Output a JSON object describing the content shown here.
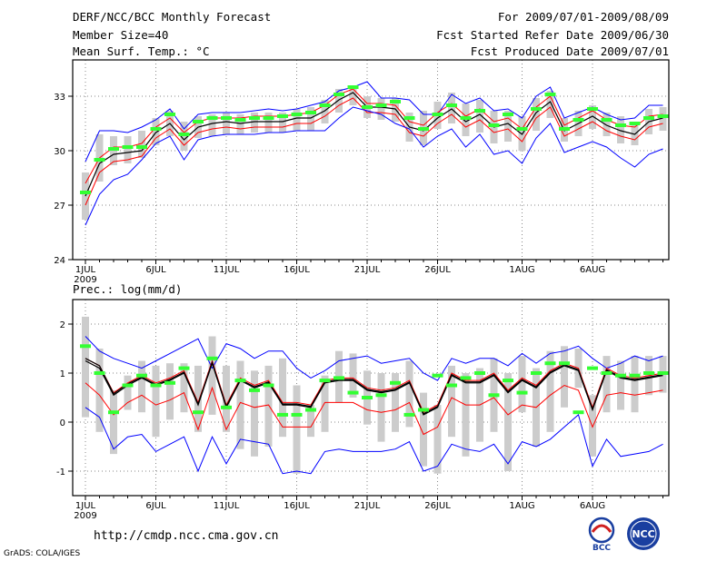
{
  "header": {
    "line1": "DERF/NCC/BCC Monthly Forecast",
    "line2": "Member Size=40",
    "line3": "Mean Surf. Temp.: °C",
    "right1": "For 2009/07/01-2009/08/09",
    "right2": "Fcst Started Refer Date 2009/06/30",
    "right3": "Fcst Produced Date 2009/07/01"
  },
  "footer": {
    "url": "http://cmdp.ncc.cma.gov.cn",
    "grads": "GrADS: COLA/IGES",
    "logo1": "BCC",
    "logo2": "NCC"
  },
  "colors": {
    "blue": "#0000ff",
    "red": "#ff0000",
    "black": "#000000",
    "green": "#33ff33",
    "gray": "#cccccc"
  },
  "chart_data": [
    {
      "type": "line",
      "title": "Mean Surf. Temp.: °C",
      "ylim": [
        24,
        35
      ],
      "yticks": [
        24,
        27,
        30,
        33
      ],
      "ytick_labels": [
        "24",
        "27",
        "30",
        "33"
      ],
      "xticks": [
        {
          "day": 1,
          "label": "1JUL",
          "sub": "2009"
        },
        {
          "day": 6,
          "label": "6JUL"
        },
        {
          "day": 11,
          "label": "11JUL"
        },
        {
          "day": 16,
          "label": "16JUL"
        },
        {
          "day": 21,
          "label": "21JUL"
        },
        {
          "day": 26,
          "label": "26JUL"
        },
        {
          "day": 32,
          "label": "1AUG"
        },
        {
          "day": 37,
          "label": "6AUG"
        }
      ],
      "days": 40,
      "series": [
        {
          "name": "max",
          "color": "blue",
          "values": [
            29.4,
            31.1,
            31.1,
            31.0,
            31.3,
            31.7,
            32.3,
            31.2,
            32.0,
            32.1,
            32.1,
            32.1,
            32.2,
            32.3,
            32.2,
            32.3,
            32.5,
            32.7,
            33.3,
            33.5,
            33.8,
            32.9,
            32.9,
            32.8,
            32.0,
            32.0,
            33.1,
            32.6,
            32.9,
            32.2,
            32.3,
            31.8,
            33.0,
            33.5,
            31.8,
            32.1,
            32.4,
            32.0,
            31.7,
            31.8,
            32.5,
            32.5
          ]
        },
        {
          "name": "mean",
          "color": "black",
          "values": [
            27.5,
            29.3,
            29.8,
            29.9,
            30.0,
            31.0,
            31.5,
            30.6,
            31.3,
            31.5,
            31.6,
            31.5,
            31.6,
            31.6,
            31.6,
            31.8,
            31.8,
            32.2,
            32.8,
            33.2,
            32.4,
            32.4,
            32.3,
            31.3,
            31.1,
            31.8,
            32.3,
            31.6,
            32.0,
            31.3,
            31.5,
            30.9,
            32.1,
            32.7,
            31.1,
            31.5,
            31.9,
            31.4,
            31.1,
            30.9,
            31.6,
            31.8
          ]
        },
        {
          "name": "upper",
          "color": "red",
          "values": [
            28.2,
            29.6,
            30.2,
            30.2,
            30.4,
            31.3,
            31.8,
            31.0,
            31.6,
            31.8,
            31.8,
            31.8,
            31.9,
            31.9,
            31.9,
            32.0,
            32.1,
            32.5,
            33.1,
            33.4,
            32.6,
            32.6,
            32.5,
            31.6,
            31.4,
            32.1,
            32.6,
            31.9,
            32.3,
            31.6,
            31.8,
            31.2,
            32.4,
            33.0,
            31.4,
            31.8,
            32.2,
            31.7,
            31.4,
            31.3,
            31.9,
            32.0
          ]
        },
        {
          "name": "lower",
          "color": "red",
          "values": [
            27.0,
            28.8,
            29.4,
            29.5,
            29.7,
            30.7,
            31.2,
            30.3,
            31.0,
            31.2,
            31.3,
            31.2,
            31.3,
            31.3,
            31.3,
            31.5,
            31.5,
            31.9,
            32.5,
            32.9,
            32.1,
            32.1,
            32.0,
            31.0,
            30.8,
            31.5,
            32.0,
            31.3,
            31.7,
            31.0,
            31.2,
            30.5,
            31.8,
            32.4,
            30.8,
            31.2,
            31.6,
            31.1,
            30.8,
            30.6,
            31.3,
            31.5
          ]
        },
        {
          "name": "min",
          "color": "blue",
          "values": [
            25.9,
            27.6,
            28.4,
            28.7,
            29.5,
            30.4,
            30.8,
            29.5,
            30.6,
            30.8,
            30.9,
            30.9,
            30.9,
            31.0,
            31.0,
            31.1,
            31.1,
            31.1,
            31.8,
            32.4,
            32.2,
            32.0,
            31.5,
            31.2,
            30.2,
            30.8,
            31.2,
            30.2,
            30.9,
            29.8,
            30.0,
            29.3,
            30.7,
            31.5,
            29.9,
            30.2,
            30.5,
            30.2,
            29.6,
            29.1,
            29.8,
            30.1
          ]
        }
      ],
      "markers": [
        27.7,
        29.5,
        30.1,
        30.2,
        30.2,
        31.2,
        32.0,
        30.9,
        31.6,
        31.8,
        31.8,
        31.7,
        31.8,
        31.8,
        31.9,
        32.0,
        32.1,
        32.5,
        33.1,
        33.5,
        32.4,
        32.5,
        32.7,
        31.8,
        31.2,
        32.0,
        32.5,
        31.8,
        32.2,
        31.4,
        32.0,
        31.2,
        32.3,
        33.1,
        31.2,
        31.7,
        32.3,
        31.7,
        31.4,
        31.5,
        31.8,
        31.9
      ],
      "bars": [
        [
          26.2,
          28.8
        ],
        [
          28.3,
          30.9
        ],
        [
          29.2,
          30.8
        ],
        [
          29.3,
          30.8
        ],
        [
          29.6,
          31.1
        ],
        [
          30.3,
          31.8
        ],
        [
          30.8,
          32.2
        ],
        [
          30.0,
          31.6
        ],
        [
          30.7,
          31.9
        ],
        [
          30.8,
          32.0
        ],
        [
          30.9,
          32.1
        ],
        [
          30.9,
          32.0
        ],
        [
          31.0,
          32.1
        ],
        [
          31.0,
          32.1
        ],
        [
          31.0,
          32.1
        ],
        [
          31.1,
          32.3
        ],
        [
          31.1,
          32.4
        ],
        [
          31.5,
          32.8
        ],
        [
          32.1,
          33.4
        ],
        [
          32.5,
          33.5
        ],
        [
          31.8,
          33.0
        ],
        [
          31.7,
          32.9
        ],
        [
          31.6,
          32.9
        ],
        [
          30.5,
          32.1
        ],
        [
          30.3,
          32.2
        ],
        [
          31.2,
          32.7
        ],
        [
          31.5,
          33.2
        ],
        [
          30.8,
          32.6
        ],
        [
          31.0,
          32.8
        ],
        [
          30.4,
          32.2
        ],
        [
          30.5,
          32.2
        ],
        [
          30.0,
          31.9
        ],
        [
          31.1,
          32.9
        ],
        [
          31.8,
          33.3
        ],
        [
          30.5,
          31.8
        ],
        [
          30.8,
          32.2
        ],
        [
          31.2,
          32.5
        ],
        [
          30.8,
          32.1
        ],
        [
          30.4,
          31.9
        ],
        [
          30.3,
          31.5
        ],
        [
          30.9,
          32.3
        ],
        [
          31.1,
          32.4
        ]
      ]
    },
    {
      "type": "line",
      "title": "Prec.: log(mm/d)",
      "ylim": [
        -1.5,
        2.5
      ],
      "yticks": [
        -1,
        0,
        1,
        2
      ],
      "ytick_labels": [
        "-1",
        "0",
        "1",
        "2"
      ],
      "xticks": [
        {
          "day": 1,
          "label": "1JUL",
          "sub": "2009"
        },
        {
          "day": 6,
          "label": "6JUL"
        },
        {
          "day": 11,
          "label": "11JUL"
        },
        {
          "day": 16,
          "label": "16JUL"
        },
        {
          "day": 21,
          "label": "21JUL"
        },
        {
          "day": 26,
          "label": "26JUL"
        },
        {
          "day": 32,
          "label": "1AUG"
        },
        {
          "day": 37,
          "label": "6AUG"
        }
      ],
      "days": 40,
      "series": [
        {
          "name": "max",
          "color": "blue",
          "values": [
            1.75,
            1.45,
            1.3,
            1.2,
            1.1,
            1.25,
            1.4,
            1.55,
            1.7,
            1.1,
            1.6,
            1.5,
            1.3,
            1.45,
            1.45,
            1.1,
            0.9,
            1.05,
            1.25,
            1.3,
            1.35,
            1.2,
            1.25,
            1.3,
            1.0,
            0.85,
            1.3,
            1.2,
            1.3,
            1.3,
            1.15,
            1.4,
            1.2,
            1.4,
            1.45,
            1.55,
            1.3,
            1.1,
            1.2,
            1.35,
            1.25,
            1.35
          ]
        },
        {
          "name": "mean",
          "color": "black",
          "values": [
            1.25,
            1.1,
            0.55,
            0.75,
            0.9,
            0.75,
            0.85,
            1.0,
            0.35,
            1.2,
            0.3,
            0.85,
            0.7,
            0.8,
            0.35,
            0.35,
            0.3,
            0.8,
            0.85,
            0.85,
            0.65,
            0.6,
            0.65,
            0.8,
            0.15,
            0.3,
            0.95,
            0.8,
            0.8,
            0.95,
            0.6,
            0.85,
            0.7,
            1.0,
            1.15,
            1.05,
            0.25,
            1.05,
            0.9,
            0.85,
            0.9,
            0.95
          ]
        },
        {
          "name": "upper",
          "color": "red",
          "values": [
            1.3,
            1.15,
            0.6,
            0.8,
            0.95,
            0.8,
            0.9,
            1.05,
            0.4,
            1.25,
            0.35,
            0.9,
            0.75,
            0.85,
            0.4,
            0.4,
            0.35,
            0.85,
            0.9,
            0.9,
            0.7,
            0.65,
            0.7,
            0.85,
            0.2,
            0.35,
            1.0,
            0.85,
            0.85,
            1.0,
            0.65,
            0.9,
            0.75,
            1.05,
            1.2,
            1.1,
            0.3,
            1.1,
            0.95,
            0.9,
            0.95,
            1.0
          ]
        },
        {
          "name": "lower",
          "color": "red",
          "values": [
            0.8,
            0.55,
            0.15,
            0.4,
            0.55,
            0.35,
            0.45,
            0.6,
            -0.15,
            0.7,
            -0.15,
            0.4,
            0.3,
            0.35,
            -0.1,
            -0.1,
            -0.1,
            0.4,
            0.4,
            0.4,
            0.25,
            0.2,
            0.25,
            0.4,
            -0.25,
            -0.1,
            0.5,
            0.35,
            0.35,
            0.5,
            0.15,
            0.35,
            0.3,
            0.55,
            0.75,
            0.65,
            -0.1,
            0.55,
            0.6,
            0.55,
            0.6,
            0.65
          ]
        },
        {
          "name": "min",
          "color": "blue",
          "values": [
            0.3,
            0.1,
            -0.55,
            -0.3,
            -0.25,
            -0.6,
            -0.45,
            -0.3,
            -1.0,
            -0.3,
            -0.85,
            -0.35,
            -0.4,
            -0.45,
            -1.05,
            -1.0,
            -1.05,
            -0.6,
            -0.55,
            -0.6,
            -0.6,
            -0.6,
            -0.55,
            -0.4,
            -1.0,
            -0.9,
            -0.45,
            -0.55,
            -0.6,
            -0.45,
            -0.85,
            -0.4,
            -0.5,
            -0.35,
            -0.1,
            0.15,
            -0.9,
            -0.35,
            -0.7,
            -0.65,
            -0.6,
            -0.45
          ]
        },
        {
          "name": "extra",
          "color": "black",
          "values": [
            1.3,
            1.15,
            0.58,
            0.78,
            0.92,
            0.77,
            0.87,
            1.02,
            0.37,
            1.22,
            0.32,
            0.87,
            0.72,
            0.82,
            0.37,
            0.37,
            0.32,
            0.82,
            0.87,
            0.87,
            0.67,
            0.62,
            0.67,
            0.82,
            0.17,
            0.32,
            0.97,
            0.82,
            0.82,
            0.97,
            0.62,
            0.87,
            0.72,
            1.02,
            1.17,
            1.07,
            0.27,
            1.07,
            0.92,
            0.87,
            0.92,
            0.97
          ]
        }
      ],
      "markers": [
        1.55,
        1.0,
        0.2,
        0.75,
        0.95,
        0.75,
        0.8,
        1.1,
        0.2,
        1.3,
        0.3,
        0.85,
        0.65,
        0.75,
        0.15,
        0.15,
        0.25,
        0.85,
        0.9,
        0.6,
        0.5,
        0.55,
        0.8,
        0.15,
        0.25,
        0.95,
        0.75,
        0.9,
        1.0,
        0.55,
        0.85,
        0.6,
        1.0,
        1.2,
        1.2,
        0.2,
        1.1,
        1.0,
        0.95,
        0.95,
        1.0,
        1.0
      ],
      "bars": [
        [
          0.1,
          2.15
        ],
        [
          -0.2,
          1.5
        ],
        [
          -0.65,
          0.65
        ],
        [
          0.25,
          0.95
        ],
        [
          0.2,
          1.25
        ],
        [
          -0.3,
          1.15
        ],
        [
          0.05,
          1.2
        ],
        [
          0.2,
          1.2
        ],
        [
          -0.2,
          1.15
        ],
        [
          0.15,
          1.75
        ],
        [
          -0.2,
          1.15
        ],
        [
          -0.55,
          1.25
        ],
        [
          -0.7,
          1.05
        ],
        [
          -0.5,
          1.15
        ],
        [
          -0.3,
          1.3
        ],
        [
          -1.05,
          0.75
        ],
        [
          -0.3,
          0.35
        ],
        [
          -0.2,
          0.95
        ],
        [
          0.4,
          1.45
        ],
        [
          0.5,
          1.4
        ],
        [
          -0.05,
          1.05
        ],
        [
          -0.4,
          1.0
        ],
        [
          -0.2,
          1.0
        ],
        [
          -0.1,
          1.25
        ],
        [
          -0.9,
          0.6
        ],
        [
          -1.05,
          0.35
        ],
        [
          -0.3,
          1.15
        ],
        [
          -0.7,
          1.0
        ],
        [
          -0.4,
          1.1
        ],
        [
          -0.2,
          1.3
        ],
        [
          -1.0,
          1.0
        ],
        [
          0.2,
          1.35
        ],
        [
          -0.5,
          1.1
        ],
        [
          -0.2,
          1.45
        ],
        [
          0.3,
          1.55
        ],
        [
          0.7,
          1.5
        ],
        [
          -0.7,
          0.55
        ],
        [
          0.2,
          1.35
        ],
        [
          0.25,
          1.25
        ],
        [
          0.2,
          1.35
        ],
        [
          0.55,
          1.35
        ],
        [
          0.6,
          1.35
        ]
      ]
    }
  ]
}
